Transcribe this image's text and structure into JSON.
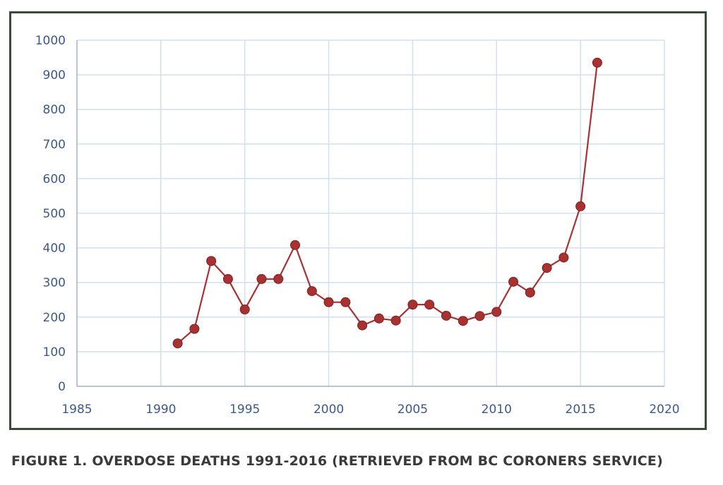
{
  "caption": "FIGURE 1. OVERDOSE DEATHS 1991-2016 (RETRIEVED FROM BC CORONERS SERVICE)",
  "chart_data": {
    "type": "scatter",
    "title": "",
    "xlabel": "",
    "ylabel": "",
    "xlim": [
      1985,
      2020
    ],
    "ylim": [
      0,
      1000
    ],
    "x_ticks": [
      1985,
      1990,
      1995,
      2000,
      2005,
      2010,
      2015,
      2020
    ],
    "y_ticks": [
      0,
      100,
      200,
      300,
      400,
      500,
      600,
      700,
      800,
      900,
      1000
    ],
    "grid": true,
    "legend": "none",
    "series": [
      {
        "color": "#a83232",
        "marker": "circle",
        "line": "straight",
        "x": [
          1991,
          1992,
          1993,
          1994,
          1995,
          1996,
          1997,
          1998,
          1999,
          2000,
          2001,
          2002,
          2003,
          2004,
          2005,
          2006,
          2007,
          2008,
          2009,
          2010,
          2011,
          2012,
          2013,
          2014,
          2015,
          2016
        ],
        "y": [
          124,
          166,
          362,
          310,
          222,
          310,
          310,
          408,
          275,
          243,
          243,
          176,
          196,
          190,
          236,
          236,
          204,
          189,
          203,
          215,
          302,
          271,
          342,
          372,
          520,
          935
        ]
      }
    ]
  }
}
